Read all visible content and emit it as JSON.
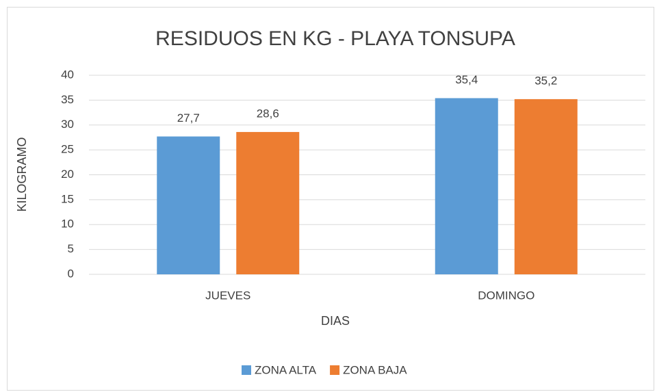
{
  "chart_data": {
    "type": "bar",
    "title": "RESIDUOS EN KG - PLAYA TONSUPA",
    "x_label": "DIAS",
    "y_label": "KILOGRAMO",
    "categories": [
      "JUEVES",
      "DOMINGO"
    ],
    "series": [
      {
        "name": "ZONA ALTA",
        "color": "#5b9bd5",
        "values": [
          27.7,
          35.4
        ],
        "value_labels": [
          "27,7",
          "35,4"
        ]
      },
      {
        "name": "ZONA BAJA",
        "color": "#ed7d31",
        "values": [
          28.6,
          35.2
        ],
        "value_labels": [
          "28,6",
          "35,2"
        ]
      }
    ],
    "ylim": [
      0,
      40
    ],
    "yticks": [
      0,
      5,
      10,
      15,
      20,
      25,
      30,
      35,
      40
    ],
    "grid": true,
    "legend": "bottom"
  }
}
